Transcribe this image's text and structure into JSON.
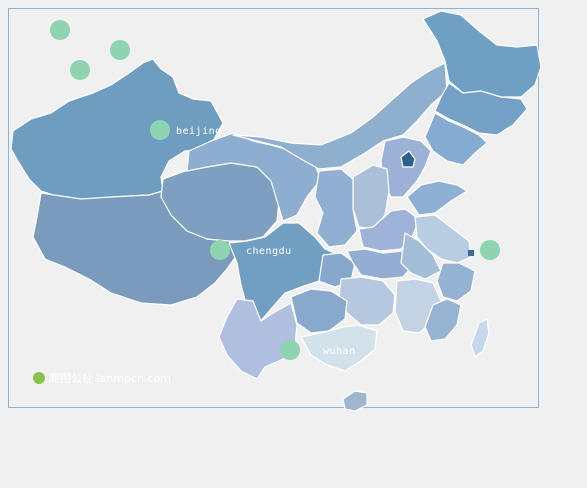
{
  "map": {
    "colors": {
      "border": "#8ab4dc",
      "background": "#f0f0f0",
      "marker": "#8fd4b0",
      "xinjiang": "#6f9dbf",
      "tibet": "#7b9bbd",
      "qinghai": "#7f9fc0",
      "northeast": "#6fa0c4",
      "inner_mongolia": "#8fafcf",
      "central": "#93aed0",
      "south": "#b8cde0",
      "yunnan": "#b0bfe0",
      "guangxi": "#d3e2ea",
      "beijing": "#2c6088",
      "taiwan": "#c8d8ec"
    },
    "markers": [
      {
        "name": "marker-1"
      },
      {
        "name": "marker-2"
      },
      {
        "name": "marker-3"
      },
      {
        "name": "marker-beijing",
        "label": "beijing"
      },
      {
        "name": "marker-chengdu",
        "label": "chengdu"
      },
      {
        "name": "marker-east"
      },
      {
        "name": "marker-wuhan",
        "label": "wuhan"
      }
    ],
    "watermark": "昵图公社 lanmpcn.com"
  }
}
